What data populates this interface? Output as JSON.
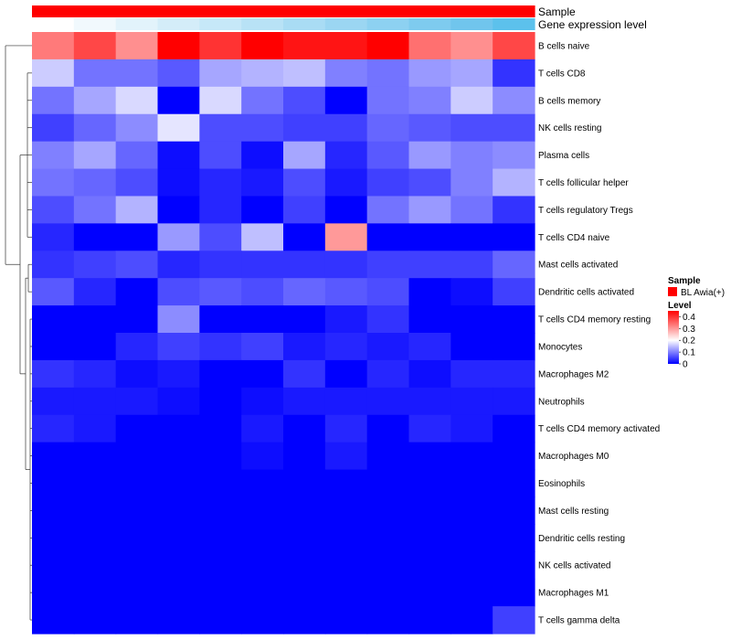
{
  "chart_data": {
    "type": "heatmap",
    "columns": 12,
    "rows": [
      "B cells naive",
      "T cells CD8",
      "B cells memory",
      "NK cells resting",
      "Plasma cells",
      "T cells follicular helper",
      "T cells regulatory  Tregs",
      "T cells CD4 naive",
      "Mast cells activated",
      "Dendritic cells activated",
      "T cells CD4 memory resting",
      "Monocytes",
      "Macrophages M2",
      "Neutrophils",
      "T cells CD4 memory activated",
      "Macrophages M0",
      "Eosinophils",
      "Mast cells resting",
      "Dendritic cells resting",
      "NK cells activated",
      "Macrophages M1",
      "T cells gamma delta"
    ],
    "values": [
      [
        0.33,
        0.38,
        0.31,
        0.45,
        0.4,
        0.45,
        0.43,
        0.43,
        0.45,
        0.34,
        0.31,
        0.38
      ],
      [
        0.16,
        0.09,
        0.09,
        0.07,
        0.13,
        0.14,
        0.15,
        0.1,
        0.09,
        0.12,
        0.13,
        0.04
      ],
      [
        0.09,
        0.13,
        0.17,
        0.0,
        0.17,
        0.09,
        0.06,
        0.0,
        0.09,
        0.1,
        0.16,
        0.11
      ],
      [
        0.05,
        0.08,
        0.11,
        0.18,
        0.06,
        0.06,
        0.05,
        0.05,
        0.08,
        0.07,
        0.06,
        0.06
      ],
      [
        0.1,
        0.13,
        0.08,
        0.01,
        0.06,
        0.01,
        0.13,
        0.03,
        0.07,
        0.12,
        0.1,
        0.11
      ],
      [
        0.09,
        0.08,
        0.06,
        0.01,
        0.03,
        0.02,
        0.06,
        0.02,
        0.05,
        0.06,
        0.1,
        0.14
      ],
      [
        0.06,
        0.09,
        0.14,
        0.0,
        0.03,
        0.0,
        0.05,
        0.0,
        0.09,
        0.12,
        0.09,
        0.04
      ],
      [
        0.03,
        0.0,
        0.0,
        0.12,
        0.06,
        0.15,
        0.0,
        0.3,
        0.0,
        0.0,
        0.0,
        0.0
      ],
      [
        0.04,
        0.05,
        0.06,
        0.03,
        0.04,
        0.04,
        0.04,
        0.04,
        0.05,
        0.05,
        0.05,
        0.08
      ],
      [
        0.07,
        0.03,
        0.0,
        0.06,
        0.07,
        0.06,
        0.08,
        0.07,
        0.06,
        0.0,
        0.01,
        0.05
      ],
      [
        0.0,
        0.0,
        0.0,
        0.11,
        0.0,
        0.0,
        0.0,
        0.02,
        0.04,
        0.0,
        0.0,
        0.0
      ],
      [
        0.0,
        0.0,
        0.03,
        0.05,
        0.04,
        0.05,
        0.02,
        0.03,
        0.02,
        0.03,
        0.0,
        0.0
      ],
      [
        0.04,
        0.03,
        0.01,
        0.02,
        0.0,
        0.0,
        0.04,
        0.0,
        0.03,
        0.01,
        0.03,
        0.03
      ],
      [
        0.02,
        0.02,
        0.02,
        0.01,
        0.0,
        0.01,
        0.02,
        0.02,
        0.02,
        0.02,
        0.02,
        0.02
      ],
      [
        0.03,
        0.02,
        0.0,
        0.0,
        0.0,
        0.02,
        0.0,
        0.03,
        0.0,
        0.03,
        0.02,
        0.0
      ],
      [
        0.0,
        0.0,
        0.0,
        0.0,
        0.0,
        0.01,
        0.0,
        0.02,
        0.0,
        0.0,
        0.0,
        0.0
      ],
      [
        0.0,
        0.0,
        0.0,
        0.0,
        0.0,
        0.0,
        0.0,
        0.0,
        0.0,
        0.0,
        0.0,
        0.0
      ],
      [
        0.0,
        0.0,
        0.0,
        0.0,
        0.0,
        0.0,
        0.0,
        0.0,
        0.0,
        0.0,
        0.0,
        0.0
      ],
      [
        0.0,
        0.0,
        0.0,
        0.0,
        0.0,
        0.0,
        0.0,
        0.0,
        0.0,
        0.0,
        0.0,
        0.0
      ],
      [
        0.0,
        0.0,
        0.0,
        0.0,
        0.0,
        0.0,
        0.0,
        0.0,
        0.0,
        0.0,
        0.0,
        0.0
      ],
      [
        0.0,
        0.0,
        0.0,
        0.0,
        0.0,
        0.0,
        0.0,
        0.0,
        0.0,
        0.0,
        0.0,
        0.0
      ],
      [
        0.0,
        0.0,
        0.0,
        0.0,
        0.0,
        0.0,
        0.0,
        0.0,
        0.0,
        0.0,
        0.0,
        0.05
      ]
    ],
    "color_scale": {
      "min": 0,
      "max": 0.45,
      "stops": [
        {
          "value": 0.0,
          "color": "#0000ff"
        },
        {
          "value": 0.2,
          "color": "#ffffff"
        },
        {
          "value": 0.45,
          "color": "#ff0000"
        }
      ]
    },
    "annotations": [
      {
        "name": "Sample",
        "colors": [
          "#ff0000",
          "#ff0000",
          "#ff0000",
          "#ff0000",
          "#ff0000",
          "#ff0000",
          "#ff0000",
          "#ff0000",
          "#ff0000",
          "#ff0000",
          "#ff0000",
          "#ff0000"
        ]
      },
      {
        "name": "Gene expression level",
        "colors": [
          "#ffffff",
          "#f1f9fd",
          "#e2f3fb",
          "#d4edf9",
          "#c6e8f8",
          "#b8e2f6",
          "#a9dcf4",
          "#9bd6f2",
          "#8dd1f1",
          "#7ecbef",
          "#70c5ed",
          "#5cc1ec"
        ]
      }
    ],
    "legend": {
      "placement": "right",
      "sample": {
        "title": "Sample",
        "label": "BL Awia(+)",
        "color": "#ff0000"
      },
      "level": {
        "title": "Level",
        "ticks": [
          0.4,
          0.3,
          0.2,
          0.1,
          0
        ]
      }
    },
    "row_dendrogram": true,
    "column_dendrogram": false
  }
}
